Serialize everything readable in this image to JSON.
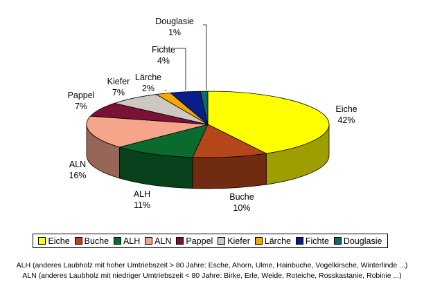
{
  "chart_data": {
    "type": "pie",
    "style": "3d",
    "categories": [
      "Eiche",
      "Buche",
      "ALH",
      "ALN",
      "Pappel",
      "Kiefer",
      "Lärche",
      "Fichte",
      "Douglasie"
    ],
    "values": [
      42,
      10,
      11,
      16,
      7,
      7,
      2,
      4,
      1
    ],
    "labels": [
      "42%",
      "10%",
      "11%",
      "16%",
      "7%",
      "7%",
      "2%",
      "4%",
      "1%"
    ],
    "colors": [
      "#ffff00",
      "#b5461b",
      "#0b6b2e",
      "#f5a58a",
      "#7a1237",
      "#cfc8c2",
      "#f5a800",
      "#0a1e8a",
      "#0a6b6b"
    ],
    "legend_position": "bottom"
  },
  "footnotes": [
    "ALH (anderes Laubholz mit hoher Umtriebszeit > 80 Jahre: Esche, Ahorn, Ulme, Hainbuche, Vogelkirsche, Winterlinde ...)",
    "ALN (anderes Laubholz mit niedriger Umtriebszeit < 80 Jahre: Birke, Erle, Weide, Roteiche, Rosskastanie, Robinie ...)"
  ]
}
